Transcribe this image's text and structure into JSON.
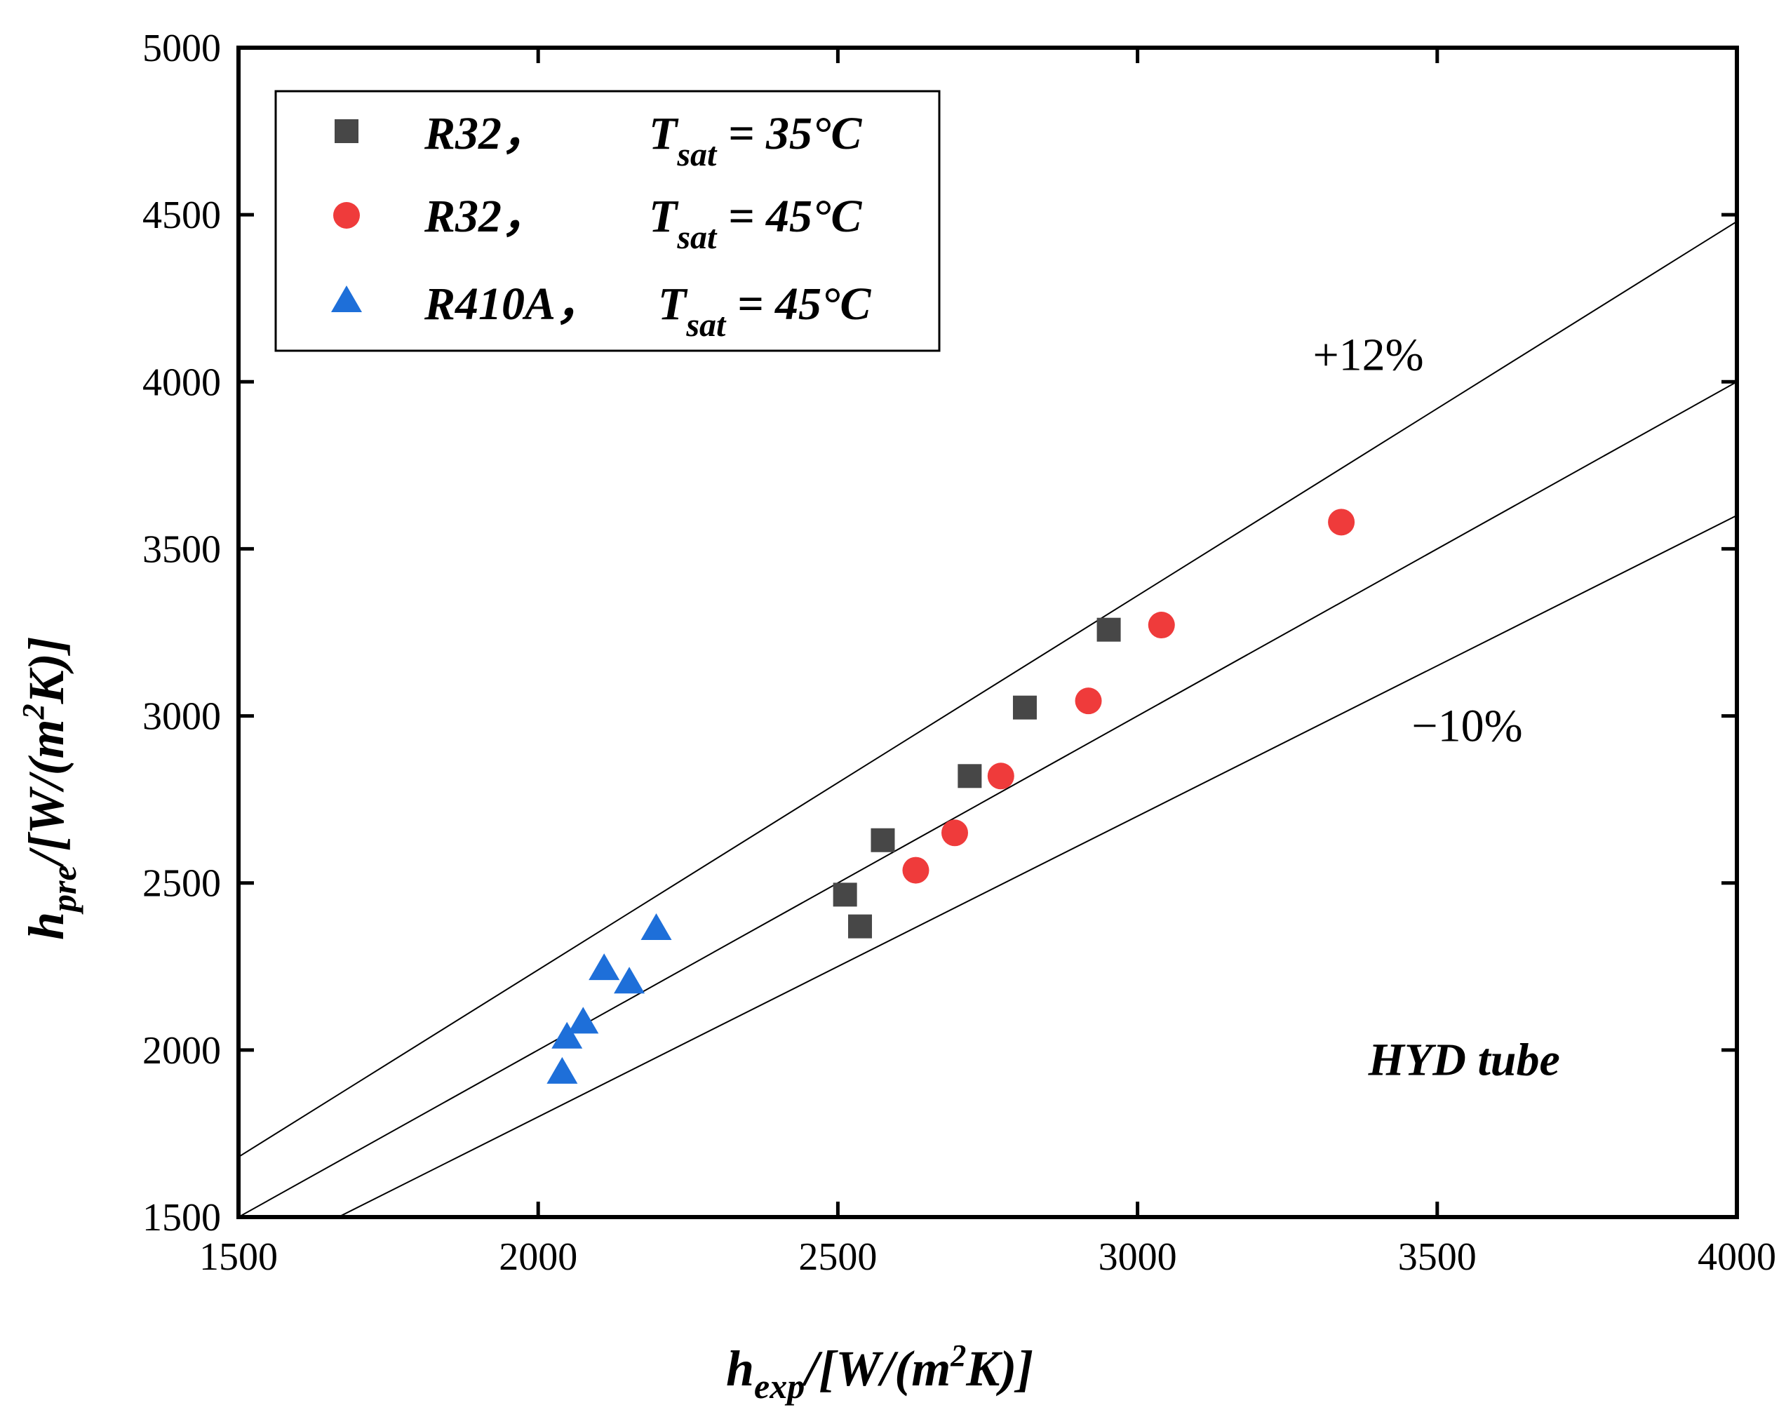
{
  "chart_data": {
    "type": "scatter",
    "title": "",
    "xlabel": {
      "main": "h",
      "sub": "exp",
      "unit_pre": "/[W/(m",
      "sup": "2",
      "unit_post": "K)]"
    },
    "ylabel": {
      "main": "h",
      "sub": "pre",
      "unit_pre": "/[W/(m",
      "sup": "2",
      "unit_post": "K)]"
    },
    "xlim": [
      1500,
      4000
    ],
    "ylim": [
      1500,
      5000
    ],
    "x_ticks": [
      1500,
      2000,
      2500,
      3000,
      3500,
      4000
    ],
    "y_ticks": [
      1500,
      2000,
      2500,
      3000,
      3500,
      4000,
      4500,
      5000
    ],
    "x_tick_labels": [
      "1500",
      "2000",
      "2500",
      "3000",
      "3500",
      "4000"
    ],
    "y_tick_labels": [
      "1500",
      "2000",
      "2500",
      "3000",
      "3500",
      "4000",
      "4500",
      "5000"
    ],
    "grid": false,
    "legend_position": "top-left",
    "series": [
      {
        "name_main": "R32，",
        "name_t": "T",
        "name_sub": "sat",
        "name_eq": " = 35°C",
        "marker": "square",
        "color": "#474747",
        "points": [
          [
            2512,
            2465
          ],
          [
            2537,
            2370
          ],
          [
            2575,
            2628
          ],
          [
            2720,
            2820
          ],
          [
            2812,
            3025
          ],
          [
            2952,
            3258
          ]
        ]
      },
      {
        "name_main": "R32，",
        "name_t": "T",
        "name_sub": "sat",
        "name_eq": " = 45°C",
        "marker": "circle",
        "color": "#ef3b3b",
        "points": [
          [
            2630,
            2538
          ],
          [
            2695,
            2650
          ],
          [
            2772,
            2820
          ],
          [
            2918,
            3045
          ],
          [
            3040,
            3272
          ],
          [
            3340,
            3580
          ]
        ]
      },
      {
        "name_main": "R410A，",
        "name_t": "T",
        "name_sub": "sat",
        "name_eq": " = 45°C",
        "marker": "triangle",
        "color": "#1e6fd9",
        "points": [
          [
            2040,
            1935
          ],
          [
            2048,
            2040
          ],
          [
            2075,
            2085
          ],
          [
            2110,
            2245
          ],
          [
            2152,
            2205
          ],
          [
            2197,
            2365
          ]
        ]
      }
    ],
    "reference_lines": [
      {
        "name": "+12%",
        "slope": 1.12
      },
      {
        "name": "parity",
        "slope": 1.0
      },
      {
        "name": "-10%",
        "slope": 0.9
      }
    ],
    "annotations": [
      {
        "text": "+12%",
        "x": 3385,
        "y": 4035,
        "style": "normal"
      },
      {
        "text": "−10%",
        "x": 3550,
        "y": 2925,
        "style": "normal"
      },
      {
        "text": "HYD tube",
        "x": 3545,
        "y": 1925,
        "style": "bold-italic"
      }
    ]
  }
}
